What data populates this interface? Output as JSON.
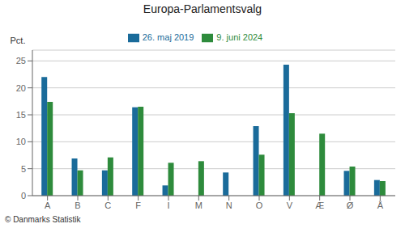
{
  "chart_data": {
    "type": "bar",
    "title": "Europa-Parlamentsvalg",
    "ylabel": "Pct.",
    "categories": [
      "A",
      "B",
      "C",
      "F",
      "I",
      "M",
      "N",
      "O",
      "V",
      "Æ",
      "Ø",
      "Å"
    ],
    "series": [
      {
        "name": "26. maj 2019",
        "color": "#1a6b9a",
        "values": [
          22.0,
          6.9,
          4.7,
          16.4,
          1.9,
          0.0,
          4.3,
          12.9,
          24.3,
          0.0,
          4.6,
          2.9
        ]
      },
      {
        "name": "9. juni 2024",
        "color": "#2e8b3c",
        "values": [
          17.4,
          4.7,
          7.1,
          16.5,
          6.1,
          6.4,
          0.0,
          7.6,
          15.3,
          11.5,
          5.4,
          2.7
        ]
      }
    ],
    "ylim": [
      0,
      27
    ],
    "yticks": [
      0,
      5,
      10,
      15,
      20,
      25
    ],
    "grid": true,
    "legend": "top",
    "annotations": [
      "© Danmarks Statistik"
    ]
  }
}
